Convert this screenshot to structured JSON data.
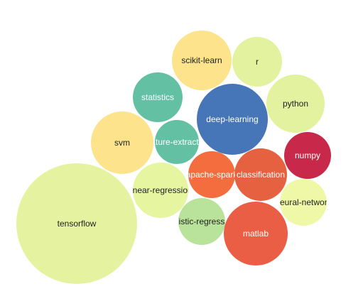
{
  "chart_data": {
    "type": "bubble",
    "title": "",
    "items": [
      {
        "label": "tensorflow",
        "size": 100,
        "fill": "#e5f3a0",
        "text_color": "#222222"
      },
      {
        "label": "deep-learning",
        "size": 35,
        "fill": "#4676b7",
        "text_color": "#ffffff"
      },
      {
        "label": "svm",
        "size": 26,
        "fill": "#fde38c",
        "text_color": "#222222"
      },
      {
        "label": "linear-regression",
        "size": 20,
        "fill": "#e5f5a0",
        "text_color": "#222222"
      },
      {
        "label": "scikit-learn",
        "size": 23,
        "fill": "#fde38c",
        "text_color": "#222222"
      },
      {
        "label": "python",
        "size": 22,
        "fill": "#e2f29e",
        "text_color": "#222222"
      },
      {
        "label": "matlab",
        "size": 27,
        "fill": "#ea5e45",
        "text_color": "#ffffff"
      },
      {
        "label": "classification",
        "size": 18,
        "fill": "#e5613f",
        "text_color": "#ffffff"
      },
      {
        "label": "statistics",
        "size": 16,
        "fill": "#63c0a3",
        "text_color": "#ffffff"
      },
      {
        "label": "r",
        "size": 16,
        "fill": "#e2f29e",
        "text_color": "#222222"
      },
      {
        "label": "logistic-regression",
        "size": 14,
        "fill": "#b9e39a",
        "text_color": "#222222"
      },
      {
        "label": "numpy",
        "size": 14,
        "fill": "#c8294a",
        "text_color": "#ffffff"
      },
      {
        "label": "apache-spark",
        "size": 14,
        "fill": "#f36d3f",
        "text_color": "#ffffff"
      },
      {
        "label": "neural-network",
        "size": 13,
        "fill": "#eef8a6",
        "text_color": "#222222"
      },
      {
        "label": "feature-extraction",
        "size": 13,
        "fill": "#63c0a3",
        "text_color": "#ffffff"
      }
    ]
  }
}
